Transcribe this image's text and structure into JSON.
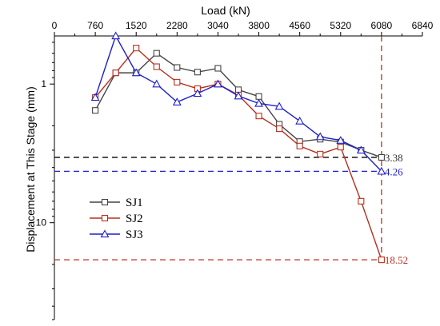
{
  "chart_data": {
    "type": "line",
    "xlabel": "Load (kN)",
    "ylabel": "Displacement at This Stage (mm)",
    "x_axis_position": "top",
    "y_axis_scale": "log",
    "y_axis_inverted": true,
    "xlim": [
      0,
      6840
    ],
    "ylim": [
      0.45,
      50
    ],
    "x_ticks": [
      0,
      760,
      1520,
      2280,
      3040,
      3800,
      4560,
      5320,
      6080,
      6840
    ],
    "x_tick_labels": [
      "0",
      "760",
      "1520",
      "2280",
      "3040",
      "3800",
      "4560",
      "5320",
      "6080",
      "6840"
    ],
    "y_ticks": [
      1,
      10
    ],
    "y_tick_labels": [
      "1",
      "10"
    ],
    "legend_position": "left",
    "series": [
      {
        "name": "SJ1",
        "color": "#444444",
        "marker": "square",
        "points": [
          {
            "x": 760,
            "y": 1.55
          },
          {
            "x": 1140,
            "y": 0.83
          },
          {
            "x": 1520,
            "y": 0.83
          },
          {
            "x": 1900,
            "y": 0.6
          },
          {
            "x": 2280,
            "y": 0.76
          },
          {
            "x": 2660,
            "y": 0.82
          },
          {
            "x": 3040,
            "y": 0.77
          },
          {
            "x": 3420,
            "y": 1.1
          },
          {
            "x": 3800,
            "y": 1.23
          },
          {
            "x": 4180,
            "y": 1.95
          },
          {
            "x": 4560,
            "y": 2.6
          },
          {
            "x": 4940,
            "y": 2.5
          },
          {
            "x": 5320,
            "y": 2.62
          },
          {
            "x": 5700,
            "y": 3.0
          },
          {
            "x": 6080,
            "y": 3.38
          }
        ]
      },
      {
        "name": "SJ2",
        "color": "#b5301f",
        "marker": "square",
        "points": [
          {
            "x": 760,
            "y": 1.25
          },
          {
            "x": 1140,
            "y": 0.83
          },
          {
            "x": 1520,
            "y": 0.55
          },
          {
            "x": 1900,
            "y": 0.75
          },
          {
            "x": 2280,
            "y": 0.97
          },
          {
            "x": 2660,
            "y": 1.08
          },
          {
            "x": 3040,
            "y": 1.0
          },
          {
            "x": 3420,
            "y": 1.2
          },
          {
            "x": 3800,
            "y": 1.7
          },
          {
            "x": 4180,
            "y": 2.1
          },
          {
            "x": 4560,
            "y": 2.8
          },
          {
            "x": 4940,
            "y": 3.2
          },
          {
            "x": 5320,
            "y": 2.85
          },
          {
            "x": 5700,
            "y": 7.0
          },
          {
            "x": 6080,
            "y": 18.52
          }
        ]
      },
      {
        "name": "SJ3",
        "color": "#1f1fcc",
        "marker": "triangle",
        "points": [
          {
            "x": 760,
            "y": 1.25
          },
          {
            "x": 1140,
            "y": 0.45
          },
          {
            "x": 1520,
            "y": 0.83
          },
          {
            "x": 1900,
            "y": 1.0
          },
          {
            "x": 2280,
            "y": 1.35
          },
          {
            "x": 2660,
            "y": 1.17
          },
          {
            "x": 3040,
            "y": 1.0
          },
          {
            "x": 3420,
            "y": 1.22
          },
          {
            "x": 3800,
            "y": 1.38
          },
          {
            "x": 4180,
            "y": 1.45
          },
          {
            "x": 4560,
            "y": 1.85
          },
          {
            "x": 4940,
            "y": 2.4
          },
          {
            "x": 5320,
            "y": 2.55
          },
          {
            "x": 5700,
            "y": 3.0
          },
          {
            "x": 6080,
            "y": 4.26
          }
        ]
      }
    ],
    "reference_lines": [
      {
        "y": 3.38,
        "color": "#000000",
        "label": "3.38",
        "label_color": "#333333"
      },
      {
        "y": 4.26,
        "color": "#1f1fcc",
        "label": "4.26",
        "label_color": "#1f1fcc"
      },
      {
        "y": 18.52,
        "color": "#b5301f",
        "label": "18.52",
        "label_color": "#b5301f"
      }
    ],
    "vertical_reference": {
      "x": 6080,
      "color": "#b5301f"
    }
  }
}
